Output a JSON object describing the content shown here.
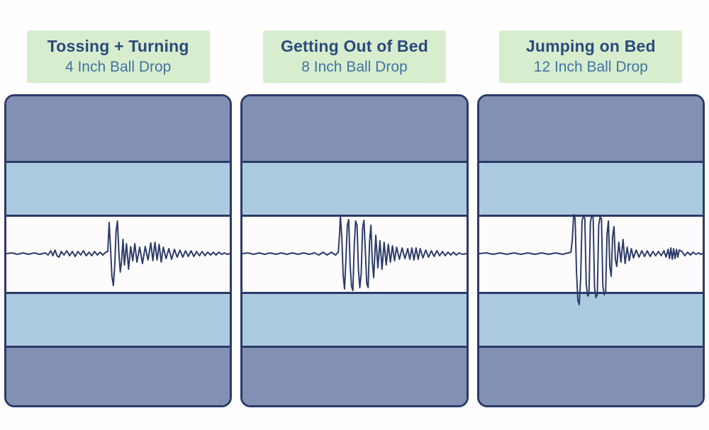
{
  "panels": [
    {
      "title": "Tossing + Turning",
      "subtitle": "4 Inch Ball Drop",
      "waveform": [
        [
          0,
          0
        ],
        [
          8,
          1
        ],
        [
          16,
          -1
        ],
        [
          24,
          1
        ],
        [
          32,
          -1
        ],
        [
          40,
          1
        ],
        [
          48,
          -1
        ],
        [
          56,
          1
        ],
        [
          60,
          -2
        ],
        [
          64,
          4
        ],
        [
          67,
          -3
        ],
        [
          70,
          5
        ],
        [
          73,
          -3
        ],
        [
          76,
          -5
        ],
        [
          79,
          3
        ],
        [
          83,
          -2
        ],
        [
          87,
          4
        ],
        [
          91,
          -3
        ],
        [
          95,
          3
        ],
        [
          99,
          -4
        ],
        [
          103,
          3
        ],
        [
          107,
          -2
        ],
        [
          111,
          4
        ],
        [
          115,
          -3
        ],
        [
          119,
          2
        ],
        [
          123,
          -3
        ],
        [
          127,
          3
        ],
        [
          131,
          -2
        ],
        [
          135,
          2
        ],
        [
          139,
          -2
        ],
        [
          143,
          2
        ],
        [
          146,
          3
        ],
        [
          148,
          44
        ],
        [
          150,
          8
        ],
        [
          152,
          -32
        ],
        [
          154,
          -45
        ],
        [
          156,
          -18
        ],
        [
          158,
          32
        ],
        [
          160,
          46
        ],
        [
          162,
          2
        ],
        [
          164,
          -26
        ],
        [
          166,
          -10
        ],
        [
          168,
          20
        ],
        [
          170,
          -16
        ],
        [
          173,
          14
        ],
        [
          176,
          -22
        ],
        [
          179,
          10
        ],
        [
          182,
          -10
        ],
        [
          185,
          14
        ],
        [
          188,
          -12
        ],
        [
          192,
          9
        ],
        [
          196,
          -14
        ],
        [
          200,
          10
        ],
        [
          204,
          -9
        ],
        [
          208,
          15
        ],
        [
          211,
          -10
        ],
        [
          214,
          16
        ],
        [
          217,
          -9
        ],
        [
          220,
          13
        ],
        [
          223,
          -12
        ],
        [
          226,
          9
        ],
        [
          230,
          -7
        ],
        [
          234,
          7
        ],
        [
          238,
          -8
        ],
        [
          242,
          6
        ],
        [
          246,
          -5
        ],
        [
          250,
          5
        ],
        [
          254,
          -5
        ],
        [
          258,
          4
        ],
        [
          262,
          -4
        ],
        [
          266,
          4
        ],
        [
          270,
          -4
        ],
        [
          274,
          3
        ],
        [
          278,
          -3
        ],
        [
          282,
          3
        ],
        [
          286,
          -3
        ],
        [
          290,
          2
        ],
        [
          294,
          -2
        ],
        [
          298,
          2
        ],
        [
          302,
          -2
        ],
        [
          306,
          2
        ],
        [
          310,
          -1
        ],
        [
          314,
          1
        ],
        [
          318,
          -1
        ],
        [
          322,
          0
        ]
      ]
    },
    {
      "title": "Getting Out of Bed",
      "subtitle": "8 Inch Ball Drop",
      "waveform": [
        [
          0,
          0
        ],
        [
          8,
          1
        ],
        [
          16,
          -1
        ],
        [
          24,
          1
        ],
        [
          32,
          -1
        ],
        [
          40,
          1
        ],
        [
          48,
          -1
        ],
        [
          56,
          1
        ],
        [
          64,
          -1
        ],
        [
          72,
          1
        ],
        [
          80,
          -1
        ],
        [
          88,
          1
        ],
        [
          96,
          -1
        ],
        [
          104,
          1
        ],
        [
          110,
          -2
        ],
        [
          116,
          2
        ],
        [
          122,
          -2
        ],
        [
          128,
          2
        ],
        [
          134,
          -2
        ],
        [
          138,
          2
        ],
        [
          140,
          30
        ],
        [
          141,
          53
        ],
        [
          143,
          25
        ],
        [
          145,
          -30
        ],
        [
          147,
          -50
        ],
        [
          149,
          -8
        ],
        [
          151,
          40
        ],
        [
          153,
          48
        ],
        [
          155,
          -15
        ],
        [
          157,
          -46
        ],
        [
          159,
          -52
        ],
        [
          161,
          12
        ],
        [
          163,
          46
        ],
        [
          165,
          40
        ],
        [
          167,
          -22
        ],
        [
          169,
          -48
        ],
        [
          171,
          -28
        ],
        [
          173,
          36
        ],
        [
          175,
          47
        ],
        [
          177,
          3
        ],
        [
          179,
          -42
        ],
        [
          181,
          -48
        ],
        [
          183,
          16
        ],
        [
          185,
          40
        ],
        [
          187,
          -12
        ],
        [
          189,
          -34
        ],
        [
          192,
          26
        ],
        [
          195,
          -20
        ],
        [
          198,
          18
        ],
        [
          201,
          -22
        ],
        [
          204,
          16
        ],
        [
          207,
          -16
        ],
        [
          210,
          13
        ],
        [
          213,
          -12
        ],
        [
          216,
          11
        ],
        [
          219,
          -10
        ],
        [
          222,
          9
        ],
        [
          226,
          -8
        ],
        [
          230,
          8
        ],
        [
          234,
          -7
        ],
        [
          238,
          7
        ],
        [
          241,
          -8
        ],
        [
          244,
          8
        ],
        [
          247,
          -9
        ],
        [
          250,
          8
        ],
        [
          253,
          -8
        ],
        [
          256,
          7
        ],
        [
          260,
          -6
        ],
        [
          264,
          5
        ],
        [
          268,
          -5
        ],
        [
          272,
          4
        ],
        [
          276,
          -4
        ],
        [
          280,
          4
        ],
        [
          284,
          -3
        ],
        [
          288,
          3
        ],
        [
          292,
          -3
        ],
        [
          296,
          2
        ],
        [
          300,
          -2
        ],
        [
          304,
          2
        ],
        [
          308,
          -2
        ],
        [
          312,
          1
        ],
        [
          317,
          -1
        ],
        [
          322,
          0
        ]
      ]
    },
    {
      "title": "Jumping on Bed",
      "subtitle": "12 Inch Ball Drop",
      "waveform": [
        [
          0,
          0
        ],
        [
          10,
          1
        ],
        [
          20,
          -1
        ],
        [
          30,
          1
        ],
        [
          40,
          -1
        ],
        [
          50,
          1
        ],
        [
          60,
          -1
        ],
        [
          70,
          1
        ],
        [
          80,
          -1
        ],
        [
          90,
          1
        ],
        [
          100,
          -1
        ],
        [
          110,
          1
        ],
        [
          120,
          -1
        ],
        [
          128,
          1
        ],
        [
          132,
          2
        ],
        [
          134,
          20
        ],
        [
          136,
          55
        ],
        [
          138,
          50
        ],
        [
          140,
          -25
        ],
        [
          142,
          -66
        ],
        [
          144,
          -72
        ],
        [
          146,
          -35
        ],
        [
          148,
          46
        ],
        [
          150,
          53
        ],
        [
          152,
          50
        ],
        [
          154,
          -42
        ],
        [
          156,
          -60
        ],
        [
          158,
          -57
        ],
        [
          160,
          44
        ],
        [
          162,
          54
        ],
        [
          164,
          51
        ],
        [
          166,
          -48
        ],
        [
          168,
          -62
        ],
        [
          170,
          -58
        ],
        [
          172,
          40
        ],
        [
          174,
          52
        ],
        [
          176,
          49
        ],
        [
          178,
          -46
        ],
        [
          180,
          -58
        ],
        [
          182,
          -54
        ],
        [
          184,
          28
        ],
        [
          186,
          46
        ],
        [
          188,
          -18
        ],
        [
          190,
          -32
        ],
        [
          192,
          24
        ],
        [
          194,
          38
        ],
        [
          196,
          -8
        ],
        [
          198,
          -18
        ],
        [
          201,
          16
        ],
        [
          204,
          -12
        ],
        [
          207,
          20
        ],
        [
          210,
          -14
        ],
        [
          213,
          9
        ],
        [
          216,
          -10
        ],
        [
          219,
          7
        ],
        [
          222,
          -6
        ],
        [
          226,
          5
        ],
        [
          230,
          -5
        ],
        [
          234,
          4
        ],
        [
          238,
          -4
        ],
        [
          242,
          4
        ],
        [
          246,
          -4
        ],
        [
          250,
          3
        ],
        [
          254,
          -3
        ],
        [
          258,
          3
        ],
        [
          262,
          -3
        ],
        [
          266,
          4
        ],
        [
          269,
          -5
        ],
        [
          272,
          6
        ],
        [
          274,
          -7
        ],
        [
          276,
          8
        ],
        [
          278,
          -8
        ],
        [
          280,
          7
        ],
        [
          282,
          -7
        ],
        [
          284,
          6
        ],
        [
          286,
          -5
        ],
        [
          288,
          5
        ],
        [
          292,
          3
        ],
        [
          296,
          -3
        ],
        [
          300,
          2
        ],
        [
          304,
          -2
        ],
        [
          308,
          2
        ],
        [
          312,
          -1
        ],
        [
          316,
          1
        ],
        [
          319,
          -1
        ],
        [
          322,
          0
        ]
      ]
    }
  ],
  "colors": {
    "page_bg": "#fffdfd",
    "header_bg": "#d7edcd",
    "title": "#2b4a7d",
    "subtitle": "#4273a4",
    "stripe_dark": "#8290b4",
    "stripe_light": "#accadf",
    "band": "#fdfbfc",
    "border": "#2b3a68",
    "wave": "#2b3a68"
  }
}
